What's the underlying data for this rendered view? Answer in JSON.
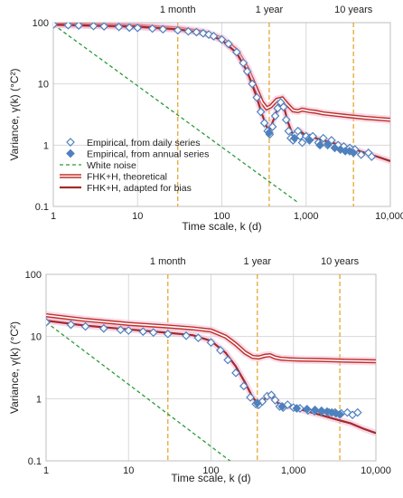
{
  "chart_data": [
    {
      "type": "line",
      "ylabel": "Variance, γ(k) (°C²)",
      "xlabel": "Time scale, k (d)",
      "xscale": "log",
      "yscale": "log",
      "xlim": [
        1,
        10000
      ],
      "ylim": [
        0.1,
        100
      ],
      "x_ticks": [
        "1",
        "10",
        "100",
        "1,000",
        "10,000"
      ],
      "y_ticks": [
        "0.1",
        "1",
        "10",
        "100"
      ],
      "grid": true,
      "markers": [
        {
          "label": "1 month",
          "x": 30
        },
        {
          "label": "1 year",
          "x": 365
        },
        {
          "label": "10 years",
          "x": 3650
        }
      ],
      "legend": {
        "placement": "lower-left",
        "entries": [
          "Empirical, from daily series",
          "Empirical, from annual series",
          "White noise",
          "FHK+H, theoretical",
          "FHK+H, adapted for bias"
        ]
      },
      "series": [
        {
          "name": "Empirical, from daily series",
          "style": "open-diamond",
          "color": "#4f81bd",
          "points": [
            [
              1,
              93
            ],
            [
              1.5,
              91
            ],
            [
              2,
              90
            ],
            [
              3,
              88
            ],
            [
              4,
              87
            ],
            [
              6,
              85
            ],
            [
              8,
              83
            ],
            [
              10,
              82
            ],
            [
              15,
              80
            ],
            [
              20,
              78
            ],
            [
              30,
              75
            ],
            [
              40,
              72
            ],
            [
              50,
              70
            ],
            [
              60,
              67
            ],
            [
              70,
              64
            ],
            [
              80,
              60
            ],
            [
              100,
              53
            ],
            [
              120,
              45
            ],
            [
              150,
              33
            ],
            [
              180,
              22
            ],
            [
              200,
              16
            ],
            [
              230,
              10
            ],
            [
              260,
              6
            ],
            [
              290,
              3.5
            ],
            [
              320,
              2.3
            ],
            [
              350,
              1.7
            ],
            [
              370,
              1.5
            ],
            [
              400,
              2
            ],
            [
              430,
              3
            ],
            [
              460,
              4
            ],
            [
              500,
              5
            ],
            [
              540,
              4.2
            ],
            [
              580,
              2.6
            ],
            [
              620,
              1.7
            ],
            [
              660,
              1.3
            ],
            [
              700,
              1.2
            ],
            [
              750,
              1.5
            ],
            [
              800,
              1.7
            ],
            [
              850,
              1.4
            ],
            [
              900,
              1.1
            ],
            [
              1000,
              1.4
            ],
            [
              1100,
              1.3
            ],
            [
              1200,
              1.4
            ],
            [
              1400,
              1.1
            ],
            [
              1600,
              1.3
            ],
            [
              1800,
              1.0
            ],
            [
              2000,
              1.2
            ],
            [
              2400,
              1.0
            ],
            [
              2800,
              0.95
            ],
            [
              3300,
              0.9
            ],
            [
              3800,
              0.85
            ],
            [
              4500,
              0.7
            ],
            [
              5500,
              0.75
            ],
            [
              6000,
              0.65
            ]
          ]
        },
        {
          "name": "Empirical, from annual series",
          "style": "filled-diamond",
          "color": "#4f81bd",
          "points": [
            [
              365,
              1.6
            ],
            [
              730,
              1.3
            ],
            [
              1095,
              1.2
            ],
            [
              1460,
              1.0
            ],
            [
              1825,
              1.05
            ],
            [
              2190,
              0.9
            ],
            [
              2555,
              0.85
            ],
            [
              2920,
              0.8
            ],
            [
              3285,
              0.8
            ],
            [
              3650,
              0.75
            ]
          ]
        },
        {
          "name": "White noise",
          "style": "dashed",
          "color": "#2e9a3a",
          "points": [
            [
              1,
              93
            ],
            [
              800,
              0.1163
            ]
          ]
        },
        {
          "name": "FHK+H, theoretical",
          "style": "double-line",
          "color": "#c0302a",
          "points": [
            [
              1,
              95
            ],
            [
              10,
              88
            ],
            [
              30,
              80
            ],
            [
              60,
              70
            ],
            [
              100,
              55
            ],
            [
              150,
              35
            ],
            [
              200,
              18
            ],
            [
              250,
              9
            ],
            [
              300,
              5
            ],
            [
              340,
              4
            ],
            [
              380,
              4.3
            ],
            [
              450,
              5.5
            ],
            [
              520,
              5.8
            ],
            [
              600,
              4.6
            ],
            [
              700,
              3.7
            ],
            [
              800,
              3.6
            ],
            [
              900,
              3.8
            ],
            [
              1100,
              3.6
            ],
            [
              1300,
              3.5
            ],
            [
              1600,
              3.3
            ],
            [
              2000,
              3.2
            ],
            [
              3000,
              3.0
            ],
            [
              5000,
              2.8
            ],
            [
              10000,
              2.6
            ]
          ]
        },
        {
          "name": "FHK+H, adapted for bias",
          "style": "solid",
          "color": "#a52a2a",
          "points": [
            [
              1,
              93
            ],
            [
              10,
              86
            ],
            [
              30,
              78
            ],
            [
              60,
              68
            ],
            [
              100,
              52
            ],
            [
              150,
              32
            ],
            [
              200,
              16
            ],
            [
              250,
              7
            ],
            [
              300,
              3.2
            ],
            [
              340,
              2.0
            ],
            [
              370,
              1.8
            ],
            [
              420,
              2.8
            ],
            [
              480,
              4.8
            ],
            [
              540,
              4.5
            ],
            [
              600,
              2.5
            ],
            [
              680,
              1.6
            ],
            [
              750,
              1.4
            ],
            [
              850,
              1.7
            ],
            [
              950,
              1.5
            ],
            [
              1100,
              1.4
            ],
            [
              1300,
              1.3
            ],
            [
              1600,
              1.2
            ],
            [
              2000,
              1.1
            ],
            [
              3000,
              0.95
            ],
            [
              5000,
              0.75
            ],
            [
              7000,
              0.65
            ],
            [
              10000,
              0.55
            ]
          ]
        }
      ]
    },
    {
      "type": "line",
      "ylabel": "Variance, γ(k) (°C²)",
      "xlabel": "Time scale, k (d)",
      "xscale": "log",
      "yscale": "log",
      "xlim": [
        1,
        10000
      ],
      "ylim": [
        0.1,
        100
      ],
      "x_ticks": [
        "1",
        "10",
        "100",
        "1,000",
        "10,000"
      ],
      "y_ticks": [
        "0.1",
        "1",
        "10",
        "100"
      ],
      "grid": true,
      "markers": [
        {
          "label": "1 month",
          "x": 30
        },
        {
          "label": "1 year",
          "x": 365
        },
        {
          "label": "10 years",
          "x": 3650
        }
      ],
      "series": [
        {
          "name": "Empirical, from daily series",
          "style": "open-diamond",
          "color": "#4f81bd",
          "points": [
            [
              1,
              17
            ],
            [
              2,
              15.5
            ],
            [
              3,
              14.5
            ],
            [
              5,
              13.5
            ],
            [
              8,
              12.8
            ],
            [
              10,
              12.5
            ],
            [
              15,
              12
            ],
            [
              20,
              11.6
            ],
            [
              30,
              11
            ],
            [
              50,
              10.3
            ],
            [
              70,
              9.5
            ],
            [
              100,
              8
            ],
            [
              130,
              6
            ],
            [
              160,
              4.2
            ],
            [
              200,
              2.6
            ],
            [
              250,
              1.6
            ],
            [
              300,
              1.05
            ],
            [
              350,
              0.82
            ],
            [
              380,
              0.8
            ],
            [
              420,
              0.9
            ],
            [
              480,
              1.1
            ],
            [
              540,
              1.15
            ],
            [
              600,
              0.95
            ],
            [
              680,
              0.75
            ],
            [
              750,
              0.72
            ],
            [
              850,
              0.8
            ],
            [
              1000,
              0.72
            ],
            [
              1200,
              0.7
            ],
            [
              1500,
              0.65
            ],
            [
              1800,
              0.63
            ],
            [
              2200,
              0.62
            ],
            [
              2700,
              0.6
            ],
            [
              3200,
              0.6
            ],
            [
              3800,
              0.58
            ],
            [
              4500,
              0.6
            ],
            [
              5200,
              0.55
            ],
            [
              6000,
              0.6
            ]
          ]
        },
        {
          "name": "Empirical, from annual series",
          "style": "filled-diamond",
          "color": "#4f81bd",
          "points": [
            [
              365,
              0.85
            ],
            [
              730,
              0.75
            ],
            [
              1095,
              0.7
            ],
            [
              1460,
              0.68
            ],
            [
              1825,
              0.66
            ],
            [
              2190,
              0.64
            ],
            [
              2555,
              0.62
            ],
            [
              2920,
              0.6
            ],
            [
              3285,
              0.58
            ],
            [
              3650,
              0.56
            ]
          ]
        },
        {
          "name": "White noise",
          "style": "dashed",
          "color": "#2e9a3a",
          "points": [
            [
              1,
              17
            ],
            [
              185,
              0.0919
            ]
          ]
        },
        {
          "name": "FHK+H, theoretical",
          "style": "double-line",
          "color": "#c0302a",
          "points": [
            [
              1,
              22
            ],
            [
              3,
              18.5
            ],
            [
              10,
              16
            ],
            [
              30,
              14.5
            ],
            [
              60,
              13.5
            ],
            [
              100,
              12.5
            ],
            [
              150,
              10
            ],
            [
              200,
              7.5
            ],
            [
              260,
              5.5
            ],
            [
              320,
              4.7
            ],
            [
              380,
              4.6
            ],
            [
              450,
              4.9
            ],
            [
              520,
              5.0
            ],
            [
              600,
              4.6
            ],
            [
              700,
              4.4
            ],
            [
              900,
              4.3
            ],
            [
              1200,
              4.25
            ],
            [
              2000,
              4.2
            ],
            [
              4000,
              4.1
            ],
            [
              10000,
              4.0
            ]
          ]
        },
        {
          "name": "FHK+H, adapted for bias",
          "style": "solid",
          "color": "#a52a2a",
          "points": [
            [
              1,
              18
            ],
            [
              3,
              15
            ],
            [
              10,
              13
            ],
            [
              30,
              11.5
            ],
            [
              60,
              10.5
            ],
            [
              100,
              8.5
            ],
            [
              150,
              5.5
            ],
            [
              200,
              3.3
            ],
            [
              260,
              1.8
            ],
            [
              320,
              1.05
            ],
            [
              370,
              0.85
            ],
            [
              430,
              0.95
            ],
            [
              500,
              1.1
            ],
            [
              570,
              1.05
            ],
            [
              650,
              0.85
            ],
            [
              750,
              0.75
            ],
            [
              900,
              0.75
            ],
            [
              1100,
              0.7
            ],
            [
              1500,
              0.62
            ],
            [
              2000,
              0.56
            ],
            [
              3000,
              0.48
            ],
            [
              5000,
              0.4
            ],
            [
              7000,
              0.33
            ],
            [
              10000,
              0.28
            ]
          ]
        }
      ]
    }
  ]
}
